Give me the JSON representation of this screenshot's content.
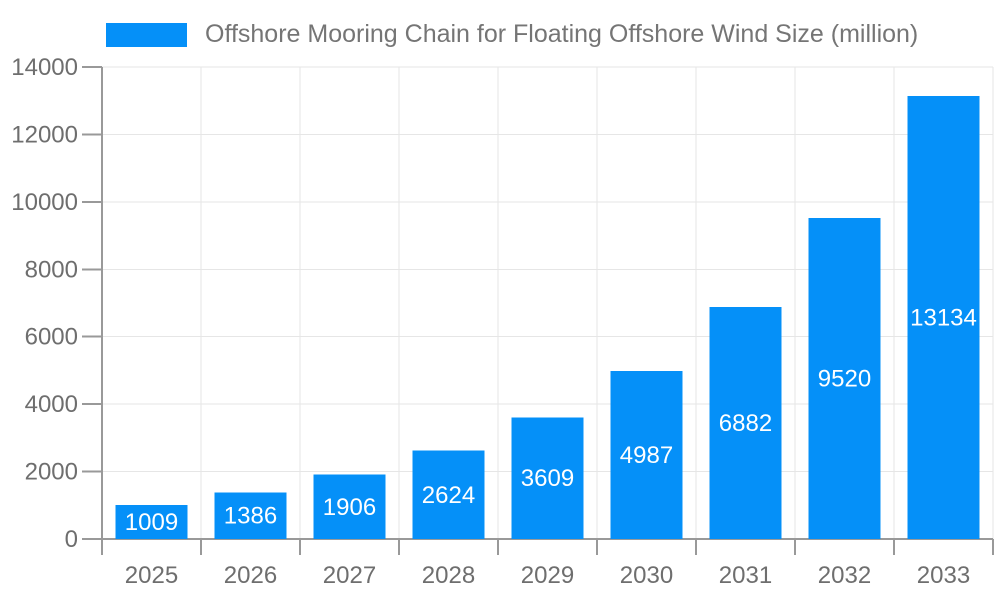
{
  "chart_data": {
    "type": "bar",
    "title": "Offshore Mooring Chain for Floating Offshore Wind Size (million)",
    "categories": [
      "2025",
      "2026",
      "2027",
      "2028",
      "2029",
      "2030",
      "2031",
      "2032",
      "2033"
    ],
    "values": [
      1009,
      1386,
      1906,
      2624,
      3609,
      4987,
      6882,
      9520,
      13134
    ],
    "series": [
      {
        "name": "Offshore Mooring Chain for Floating Offshore Wind Size (million)",
        "values": [
          1009,
          1386,
          1906,
          2624,
          3609,
          4987,
          6882,
          9520,
          13134
        ]
      }
    ],
    "xlabel": "",
    "ylabel": "",
    "ylim": [
      0,
      14000
    ],
    "ytick_step": 2000,
    "ytick_labels": [
      "0",
      "2000",
      "4000",
      "6000",
      "8000",
      "10000",
      "12000",
      "14000"
    ],
    "grid": true,
    "legend_position": "top-left",
    "bar_labels_visible": true,
    "colors": {
      "bar": "#0590f8",
      "bar_label": "#ffffff",
      "axis": "#999999",
      "grid": "#e6e6e6",
      "tick_text": "#6e6e6e",
      "legend_text": "#757575",
      "background": "#ffffff"
    }
  }
}
